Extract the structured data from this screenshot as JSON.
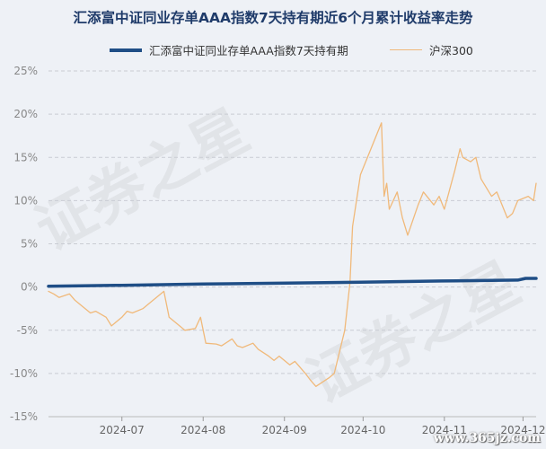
{
  "chart_data": {
    "type": "line",
    "title": "汇添富中证同业存单AAA指数7天持有期近6个月累计收益率走势",
    "ylim": [
      -15,
      25
    ],
    "yticks": [
      25,
      20,
      15,
      10,
      5,
      0,
      -5,
      -10,
      -15
    ],
    "ytick_labels": [
      "25%",
      "20%",
      "15%",
      "10%",
      "5%",
      "0%",
      "-5%",
      "-10%",
      "-15%"
    ],
    "x_range": [
      "2024-06-03",
      "2024-12-06"
    ],
    "xticks": [
      "2024-07-01",
      "2024-08-01",
      "2024-09-01",
      "2024-10-01",
      "2024-11-01",
      "2024-12-01"
    ],
    "xtick_labels": [
      "2024-07",
      "2024-08",
      "2024-09",
      "2024-10",
      "2024-11",
      "2024-12"
    ],
    "grid": "horizontal dashed",
    "legend_position": "top",
    "series": [
      {
        "name": "汇添富中证同业存单AAA指数7天持有期",
        "color": "#1f4e86",
        "x": [
          "2024-06-03",
          "2024-07-01",
          "2024-08-01",
          "2024-09-02",
          "2024-09-30",
          "2024-10-31",
          "2024-11-29",
          "2024-12-02",
          "2024-12-06"
        ],
        "values": [
          0.1,
          0.2,
          0.35,
          0.45,
          0.55,
          0.7,
          0.8,
          1.0,
          1.0
        ]
      },
      {
        "name": "沪深300",
        "color": "#f0b97a",
        "x": [
          "2024-06-03",
          "2024-06-05",
          "2024-06-07",
          "2024-06-11",
          "2024-06-13",
          "2024-06-17",
          "2024-06-19",
          "2024-06-21",
          "2024-06-25",
          "2024-06-27",
          "2024-07-01",
          "2024-07-03",
          "2024-07-05",
          "2024-07-09",
          "2024-07-11",
          "2024-07-15",
          "2024-07-17",
          "2024-07-19",
          "2024-07-23",
          "2024-07-25",
          "2024-07-29",
          "2024-07-31",
          "2024-08-02",
          "2024-08-06",
          "2024-08-08",
          "2024-08-12",
          "2024-08-14",
          "2024-08-16",
          "2024-08-20",
          "2024-08-22",
          "2024-08-26",
          "2024-08-28",
          "2024-08-30",
          "2024-09-03",
          "2024-09-05",
          "2024-09-09",
          "2024-09-11",
          "2024-09-13",
          "2024-09-18",
          "2024-09-20",
          "2024-09-24",
          "2024-09-26",
          "2024-09-27",
          "2024-09-30",
          "2024-10-08",
          "2024-10-09",
          "2024-10-10",
          "2024-10-11",
          "2024-10-14",
          "2024-10-16",
          "2024-10-18",
          "2024-10-22",
          "2024-10-24",
          "2024-10-28",
          "2024-10-30",
          "2024-11-01",
          "2024-11-05",
          "2024-11-07",
          "2024-11-08",
          "2024-11-11",
          "2024-11-13",
          "2024-11-15",
          "2024-11-19",
          "2024-11-21",
          "2024-11-25",
          "2024-11-27",
          "2024-11-29",
          "2024-12-03",
          "2024-12-05",
          "2024-12-06"
        ],
        "values": [
          -0.5,
          -0.8,
          -1.2,
          -0.8,
          -1.5,
          -2.5,
          -3.0,
          -2.8,
          -3.5,
          -4.5,
          -3.5,
          -2.8,
          -3.0,
          -2.5,
          -2.0,
          -1.0,
          -0.5,
          -3.5,
          -4.5,
          -5.0,
          -4.8,
          -3.5,
          -6.5,
          -6.6,
          -6.8,
          -6.0,
          -6.8,
          -7.0,
          -6.5,
          -7.2,
          -8.0,
          -8.5,
          -8.0,
          -9.0,
          -8.6,
          -10.0,
          -10.8,
          -11.5,
          -10.5,
          -10.0,
          -5.0,
          0.5,
          7.0,
          13.0,
          19.0,
          10.5,
          12.0,
          9.0,
          11.0,
          8.0,
          6.0,
          9.5,
          11.0,
          9.5,
          10.5,
          9.0,
          13.5,
          16.0,
          15.0,
          14.5,
          15.0,
          12.5,
          10.5,
          11.0,
          8.0,
          8.5,
          10.0,
          10.5,
          10.0,
          12.0
        ]
      }
    ]
  },
  "watermark": {
    "text": "证券之星"
  },
  "site_mark": "www.365jz.com"
}
